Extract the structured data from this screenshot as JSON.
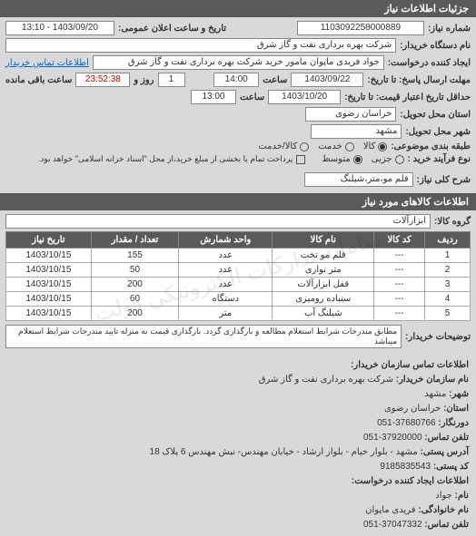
{
  "headers": {
    "details": "جزئیات اطلاعات نیاز",
    "items": "اطلاعات کالاهای مورد نیاز"
  },
  "form": {
    "request_no_label": "شماره نیاز:",
    "request_no": "1103092258000889",
    "announce_label": "تاریخ و ساعت اعلان عمومی:",
    "announce_value": "1403/09/20 - 13:10",
    "org_label": "نام دستگاه خریدار:",
    "org_value": "شرکت بهره برداری نفت و گاز شرق",
    "requester_label": "ایجاد کننده درخواست:",
    "requester_value": "جواد فریدی ماپوان مامور خرید شرکت بهره برداری نفت و گاز شرق",
    "buyer_contact_link": "اطلاعات تماس خریدار",
    "deadline_label": "مهلت ارسال پاسخ: تا تاریخ:",
    "deadline_date": "1403/09/22",
    "time_label": "ساعت",
    "deadline_time": "14:00",
    "days_remaining": "1",
    "days_label": "روز و",
    "time_remaining": "23:52:38",
    "remaining_label": "ساعت باقی مانده",
    "validity_label": "حداقل تاریخ اعتبار قیمت: تا تاریخ:",
    "validity_date": "1403/10/20",
    "validity_time": "13:00",
    "province_label": "استان محل تحویل:",
    "province_value": "خراسان رضوی",
    "city_label": "شهر محل تحویل:",
    "city_value": "مشهد",
    "category_label": "طبقه بندی موضوعی:",
    "goods_radio": "کالا",
    "service_radio": "خدمت",
    "both_radio": "کالا/خدمت",
    "purchase_type_label": "نوع فرآیند خرید :",
    "small_radio": "جزیی",
    "medium_radio": "متوسط",
    "purchase_note": "پرداخت تمام یا بخشی از مبلغ خرید،از محل \"اسناد خزانه اسلامی\" خواهد بود.",
    "need_desc_label": "شرح کلی نیاز:",
    "need_desc_value": "قلم مو،متر،شیلنگ",
    "group_label": "گروه کالا:",
    "group_value": "ابزارآلات",
    "buyer_notes_label": "توضیحات خریدار:",
    "buyer_notes_value": "مطابق مندرجات شرایط استعلام مطالعه و بارگذاری گردد. بارگذاری قیمت به منزله تایید مندرجات شرایط استعلام میباشد"
  },
  "table": {
    "columns": [
      "ردیف",
      "کد کالا",
      "نام کالا",
      "واحد شمارش",
      "تعداد / مقدار",
      "تاریخ نیاز"
    ],
    "rows": [
      [
        "1",
        "---",
        "قلم مو تخت",
        "عدد",
        "155",
        "1403/10/15"
      ],
      [
        "2",
        "---",
        "متر نواری",
        "عدد",
        "50",
        "1403/10/15"
      ],
      [
        "3",
        "---",
        "قفل ابزارآلات",
        "عدد",
        "200",
        "1403/10/15"
      ],
      [
        "4",
        "---",
        "سنباده رومیزی",
        "دستگاه",
        "60",
        "1403/10/15"
      ],
      [
        "5",
        "---",
        "شیلنگ آب",
        "متر",
        "200",
        "1403/10/15"
      ]
    ],
    "watermark": "سامانه تدارکات الکترونیکی دولت"
  },
  "contact": {
    "header": "اطلاعات تماس سازمان خریدار:",
    "org_name_label": "نام سازمان خریدار:",
    "org_name": "شرکت بهره برداری نفت و گاز شرق",
    "city_label": "شهر:",
    "city": "مشهد",
    "province_label": "استان:",
    "province": "خراسان رضوی",
    "dorn_label": "دورنگار:",
    "dorn": "37680766-051",
    "phone_label": "تلفن تماس:",
    "phone": "37920000-051",
    "address_label": "آدرس پستی:",
    "address": "مشهد - بلوار خیام - بلوار ارشاد - خیابان مهندس- نبش مهندس 6 پلاک 18",
    "postal_label": "کد پستی:",
    "postal": "9185835543",
    "creator_header": "اطلاعات ایجاد کننده درخواست:",
    "first_name_label": "نام:",
    "first_name": "جواد",
    "last_name_label": "نام خانوادگی:",
    "last_name": "فریدی ماپوان",
    "creator_phone_label": "تلفن تماس:",
    "creator_phone": "37047332-051"
  },
  "colors": {
    "header_bg": "#5a5a5a",
    "form_bg": "#d9d9d9"
  }
}
